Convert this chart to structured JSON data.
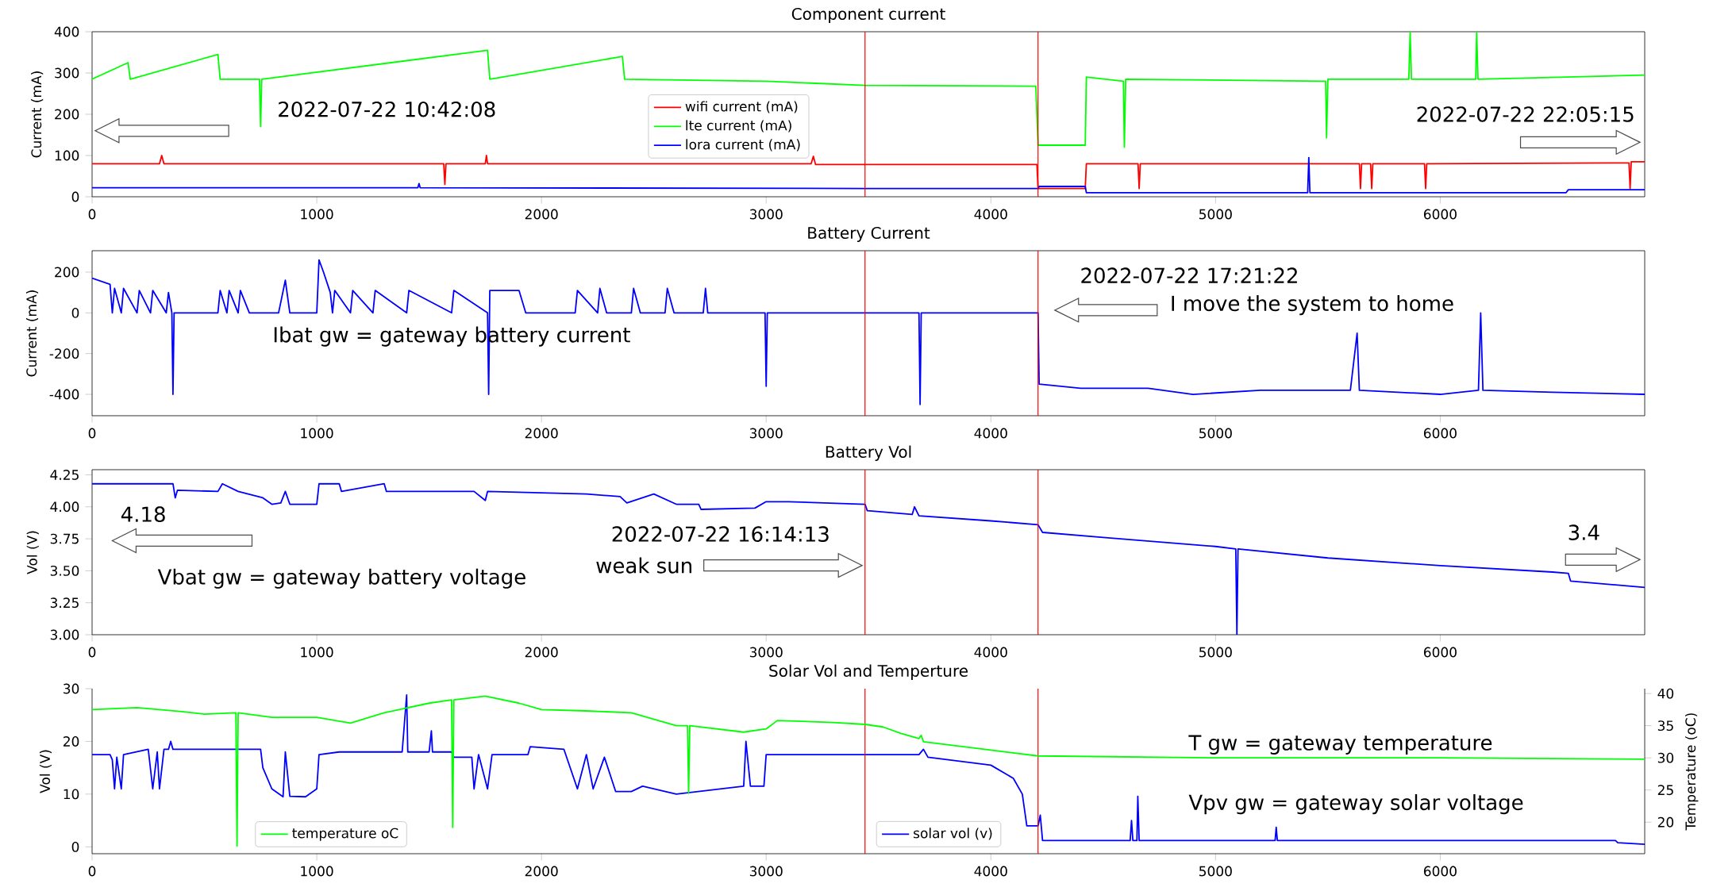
{
  "chart_data": [
    {
      "type": "line",
      "title": "Component current",
      "ylabel": "Current (mA)",
      "xlim": [
        0,
        6910
      ],
      "xticks": [
        0,
        1000,
        2000,
        3000,
        4000,
        5000,
        6000
      ],
      "ylim": [
        0,
        400
      ],
      "yticks": [
        0,
        100,
        200,
        300,
        400
      ],
      "legend": "center",
      "series": [
        {
          "name": "wifi current (mA)",
          "color": "#ff0000",
          "x": [
            0,
            300,
            310,
            320,
            1565,
            1570,
            1575,
            1750,
            1755,
            1760,
            3200,
            3210,
            3220,
            4205,
            4210,
            4420,
            4425,
            4655,
            4660,
            4665,
            5640,
            5645,
            5650,
            5690,
            5695,
            5700,
            5930,
            5935,
            5940,
            6840,
            6845,
            6850,
            6910
          ],
          "values": [
            80,
            80,
            100,
            80,
            80,
            30,
            80,
            80,
            100,
            80,
            80,
            98,
            78,
            78,
            20,
            20,
            80,
            80,
            20,
            80,
            80,
            20,
            80,
            80,
            20,
            80,
            80,
            20,
            80,
            82,
            20,
            85,
            85
          ]
        },
        {
          "name": "lte current (mA)",
          "color": "#00ff00",
          "x": [
            0,
            160,
            170,
            560,
            570,
            745,
            750,
            755,
            1760,
            1770,
            2360,
            2370,
            3000,
            3440,
            4200,
            4210,
            4420,
            4425,
            4590,
            4594,
            4600,
            5490,
            5494,
            5500,
            5860,
            5866,
            5872,
            6158,
            6162,
            6168,
            6910
          ],
          "values": [
            285,
            325,
            285,
            345,
            285,
            285,
            170,
            285,
            355,
            285,
            340,
            285,
            280,
            270,
            268,
            125,
            125,
            290,
            280,
            120,
            285,
            280,
            143,
            285,
            285,
            400,
            285,
            285,
            400,
            285,
            295
          ]
        },
        {
          "name": "lora current (mA)",
          "color": "#0000ff",
          "x": [
            0,
            1450,
            1455,
            1460,
            3440,
            4210,
            4215,
            4420,
            4425,
            5410,
            5415,
            5420,
            6560,
            6570,
            6910
          ],
          "values": [
            22,
            22,
            32,
            22,
            20,
            20,
            25,
            25,
            10,
            10,
            95,
            10,
            10,
            17,
            17
          ]
        }
      ],
      "ref_lines": [
        {
          "axis": "x",
          "value": 3440,
          "color": "#ff0000"
        },
        {
          "axis": "x",
          "value": 4210,
          "color": "#ff0000"
        }
      ],
      "annotations": [
        "2022-07-22 10:42:08",
        "2022-07-22 22:05:15"
      ]
    },
    {
      "type": "line",
      "title": "Battery Current",
      "ylabel": "Current (mA)",
      "xlim": [
        0,
        6910
      ],
      "xticks": [
        0,
        1000,
        2000,
        3000,
        4000,
        5000,
        6000
      ],
      "ylim": [
        -505,
        305
      ],
      "yticks": [
        -400,
        -200,
        0,
        200
      ],
      "series": [
        {
          "color": "#0000ff",
          "x": [
            0,
            80,
            90,
            100,
            130,
            140,
            200,
            210,
            260,
            270,
            330,
            340,
            355,
            360,
            365,
            560,
            570,
            600,
            610,
            650,
            660,
            700,
            830,
            860,
            880,
            1000,
            1010,
            1030,
            1060,
            1070,
            1080,
            1150,
            1160,
            1250,
            1260,
            1400,
            1410,
            1600,
            1610,
            1760,
            1765,
            1770,
            1900,
            1930,
            2150,
            2160,
            2250,
            2260,
            2290,
            2400,
            2410,
            2440,
            2550,
            2560,
            2590,
            2720,
            2730,
            2740,
            2995,
            3000,
            3005,
            3680,
            3685,
            3690,
            4210,
            4215,
            4400,
            4700,
            4900,
            5200,
            5600,
            5630,
            5640,
            6000,
            6170,
            6180,
            6190,
            6500,
            6910
          ],
          "values": [
            170,
            140,
            0,
            120,
            0,
            120,
            0,
            110,
            0,
            110,
            0,
            100,
            0,
            -400,
            0,
            0,
            110,
            0,
            110,
            0,
            110,
            0,
            0,
            160,
            0,
            0,
            260,
            200,
            100,
            0,
            110,
            0,
            110,
            0,
            110,
            0,
            110,
            0,
            110,
            0,
            -400,
            110,
            110,
            0,
            0,
            110,
            0,
            120,
            0,
            0,
            120,
            0,
            0,
            120,
            0,
            0,
            120,
            0,
            0,
            -360,
            0,
            0,
            -450,
            0,
            0,
            -350,
            -370,
            -370,
            -400,
            -380,
            -380,
            -100,
            -380,
            -400,
            -380,
            0,
            -380,
            -390,
            -400
          ]
        }
      ],
      "ref_lines": [
        {
          "axis": "x",
          "value": 3440,
          "color": "#ff0000"
        },
        {
          "axis": "x",
          "value": 4210,
          "color": "#ff0000"
        }
      ],
      "annotations": [
        "2022-07-22 17:21:22",
        "I move the system to home",
        "Ibat gw = gateway battery current"
      ]
    },
    {
      "type": "line",
      "title": "Battery Vol",
      "ylabel": "Vol (V)",
      "xlim": [
        0,
        6910
      ],
      "xticks": [
        0,
        1000,
        2000,
        3000,
        4000,
        5000,
        6000
      ],
      "ylim": [
        3.0,
        4.29
      ],
      "yticks": [
        {
          "value": 3.0,
          "label": "3.00"
        },
        {
          "value": 3.25,
          "label": "3.25"
        },
        {
          "value": 3.5,
          "label": "3.50"
        },
        {
          "value": 3.75,
          "label": "3.75"
        },
        {
          "value": 4.0,
          "label": "4.00"
        },
        {
          "value": 4.25,
          "label": "4.25"
        }
      ],
      "series": [
        {
          "color": "#0000ff",
          "x": [
            0,
            360,
            370,
            380,
            560,
            580,
            650,
            760,
            800,
            840,
            860,
            880,
            1000,
            1010,
            1100,
            1110,
            1300,
            1310,
            1700,
            1750,
            1760,
            2200,
            2350,
            2380,
            2500,
            2600,
            2700,
            2710,
            2950,
            3000,
            3100,
            3440,
            3450,
            3650,
            3660,
            3680,
            4000,
            4210,
            4230,
            4500,
            5000,
            5090,
            5095,
            5100,
            5500,
            6000,
            6500,
            6570,
            6580,
            6910
          ],
          "values": [
            4.18,
            4.18,
            4.07,
            4.13,
            4.12,
            4.18,
            4.12,
            4.07,
            4.02,
            4.03,
            4.12,
            4.02,
            4.02,
            4.18,
            4.18,
            4.12,
            4.18,
            4.12,
            4.12,
            4.05,
            4.12,
            4.1,
            4.08,
            4.03,
            4.1,
            4.02,
            4.02,
            3.98,
            3.99,
            4.04,
            4.04,
            4.02,
            3.97,
            3.94,
            4.0,
            3.93,
            3.89,
            3.86,
            3.8,
            3.76,
            3.69,
            3.67,
            3.0,
            3.67,
            3.6,
            3.54,
            3.49,
            3.48,
            3.42,
            3.37
          ]
        }
      ],
      "ref_lines": [
        {
          "axis": "x",
          "value": 3440,
          "color": "#ff0000"
        },
        {
          "axis": "x",
          "value": 4210,
          "color": "#ff0000"
        }
      ],
      "annotations": [
        "4.18",
        "2022-07-22 16:14:13",
        "weak sun",
        "Vbat gw = gateway battery voltage",
        "3.4"
      ]
    },
    {
      "type": "line",
      "title": "Solar Vol and Temperture",
      "ylabel": "Vol (V)",
      "y2label": "Temperature (oC)",
      "xlim": [
        0,
        6910
      ],
      "xticks": [
        0,
        1000,
        2000,
        3000,
        4000,
        5000,
        6000
      ],
      "ylim": [
        -1.3,
        30
      ],
      "yticks": [
        0,
        10,
        20,
        30
      ],
      "y2lim": [
        15.1,
        40.75
      ],
      "y2ticks": [
        20,
        25,
        30,
        35,
        40
      ],
      "legend": "bottom",
      "series": [
        {
          "name": "solar vol (v)",
          "color": "#0000ff",
          "x": [
            0,
            80,
            90,
            100,
            110,
            130,
            140,
            250,
            270,
            290,
            300,
            320,
            340,
            350,
            360,
            750,
            760,
            800,
            850,
            860,
            880,
            950,
            1000,
            1010,
            1100,
            1380,
            1400,
            1405,
            1500,
            1510,
            1515,
            1600,
            1610,
            1690,
            1700,
            1720,
            1760,
            1780,
            1940,
            1950,
            2100,
            2160,
            2200,
            2230,
            2280,
            2330,
            2400,
            2450,
            2600,
            2900,
            2910,
            2930,
            2990,
            3000,
            3440,
            3680,
            3700,
            3720,
            4000,
            4100,
            4140,
            4160,
            4210,
            4220,
            4230,
            4620,
            4626,
            4632,
            4650,
            4654,
            4660,
            5265,
            5270,
            5275,
            6780,
            6790,
            6910
          ],
          "values": [
            17.5,
            17.5,
            16.5,
            11,
            17,
            11,
            17.5,
            18.5,
            11,
            18,
            11,
            18.5,
            18.5,
            20,
            18.5,
            18.5,
            15,
            11,
            9.5,
            18,
            9.6,
            9.5,
            11,
            17.5,
            18,
            18,
            28.8,
            18,
            18,
            22,
            18,
            18,
            17,
            17,
            11,
            17.5,
            11,
            17.5,
            17.5,
            19,
            18.5,
            11,
            17.5,
            11,
            17,
            10.5,
            10.5,
            11.5,
            10,
            11.5,
            20,
            11.5,
            11.5,
            17.5,
            17.5,
            17.5,
            18.5,
            17,
            15.5,
            13,
            10,
            4,
            4,
            6,
            1.2,
            1.2,
            5,
            1.2,
            1.2,
            9.6,
            1.2,
            1.2,
            3.7,
            1.2,
            1.2,
            0.8,
            0.5
          ]
        },
        {
          "name": "temperature oC",
          "color": "#00ff00",
          "axis": "y2",
          "x": [
            0,
            200,
            400,
            500,
            640,
            645,
            650,
            800,
            1000,
            1150,
            1300,
            1500,
            1600,
            1605,
            1610,
            1750,
            1900,
            2000,
            2200,
            2400,
            2600,
            2650,
            2655,
            2660,
            2900,
            3000,
            3050,
            3300,
            3440,
            3520,
            3600,
            3680,
            3690,
            3700,
            4000,
            4210,
            5000,
            6000,
            6910
          ],
          "values": [
            37.5,
            37.8,
            37.2,
            36.8,
            37,
            16.3,
            37,
            36.3,
            36.3,
            35.4,
            37,
            38.5,
            39,
            19.2,
            39,
            39.6,
            38.5,
            37.5,
            37.3,
            37,
            35,
            35,
            24.5,
            35,
            34,
            34.5,
            35.8,
            35.5,
            35.2,
            34.8,
            33.8,
            33,
            33.5,
            32.5,
            31.2,
            30.3,
            30,
            30,
            29.8
          ]
        }
      ],
      "ref_lines": [
        {
          "axis": "x",
          "value": 3440,
          "color": "#ff0000"
        },
        {
          "axis": "x",
          "value": 4210,
          "color": "#ff0000"
        }
      ],
      "annotations": [
        "T gw = gateway temperature",
        "Vpv gw = gateway solar voltage"
      ]
    }
  ]
}
